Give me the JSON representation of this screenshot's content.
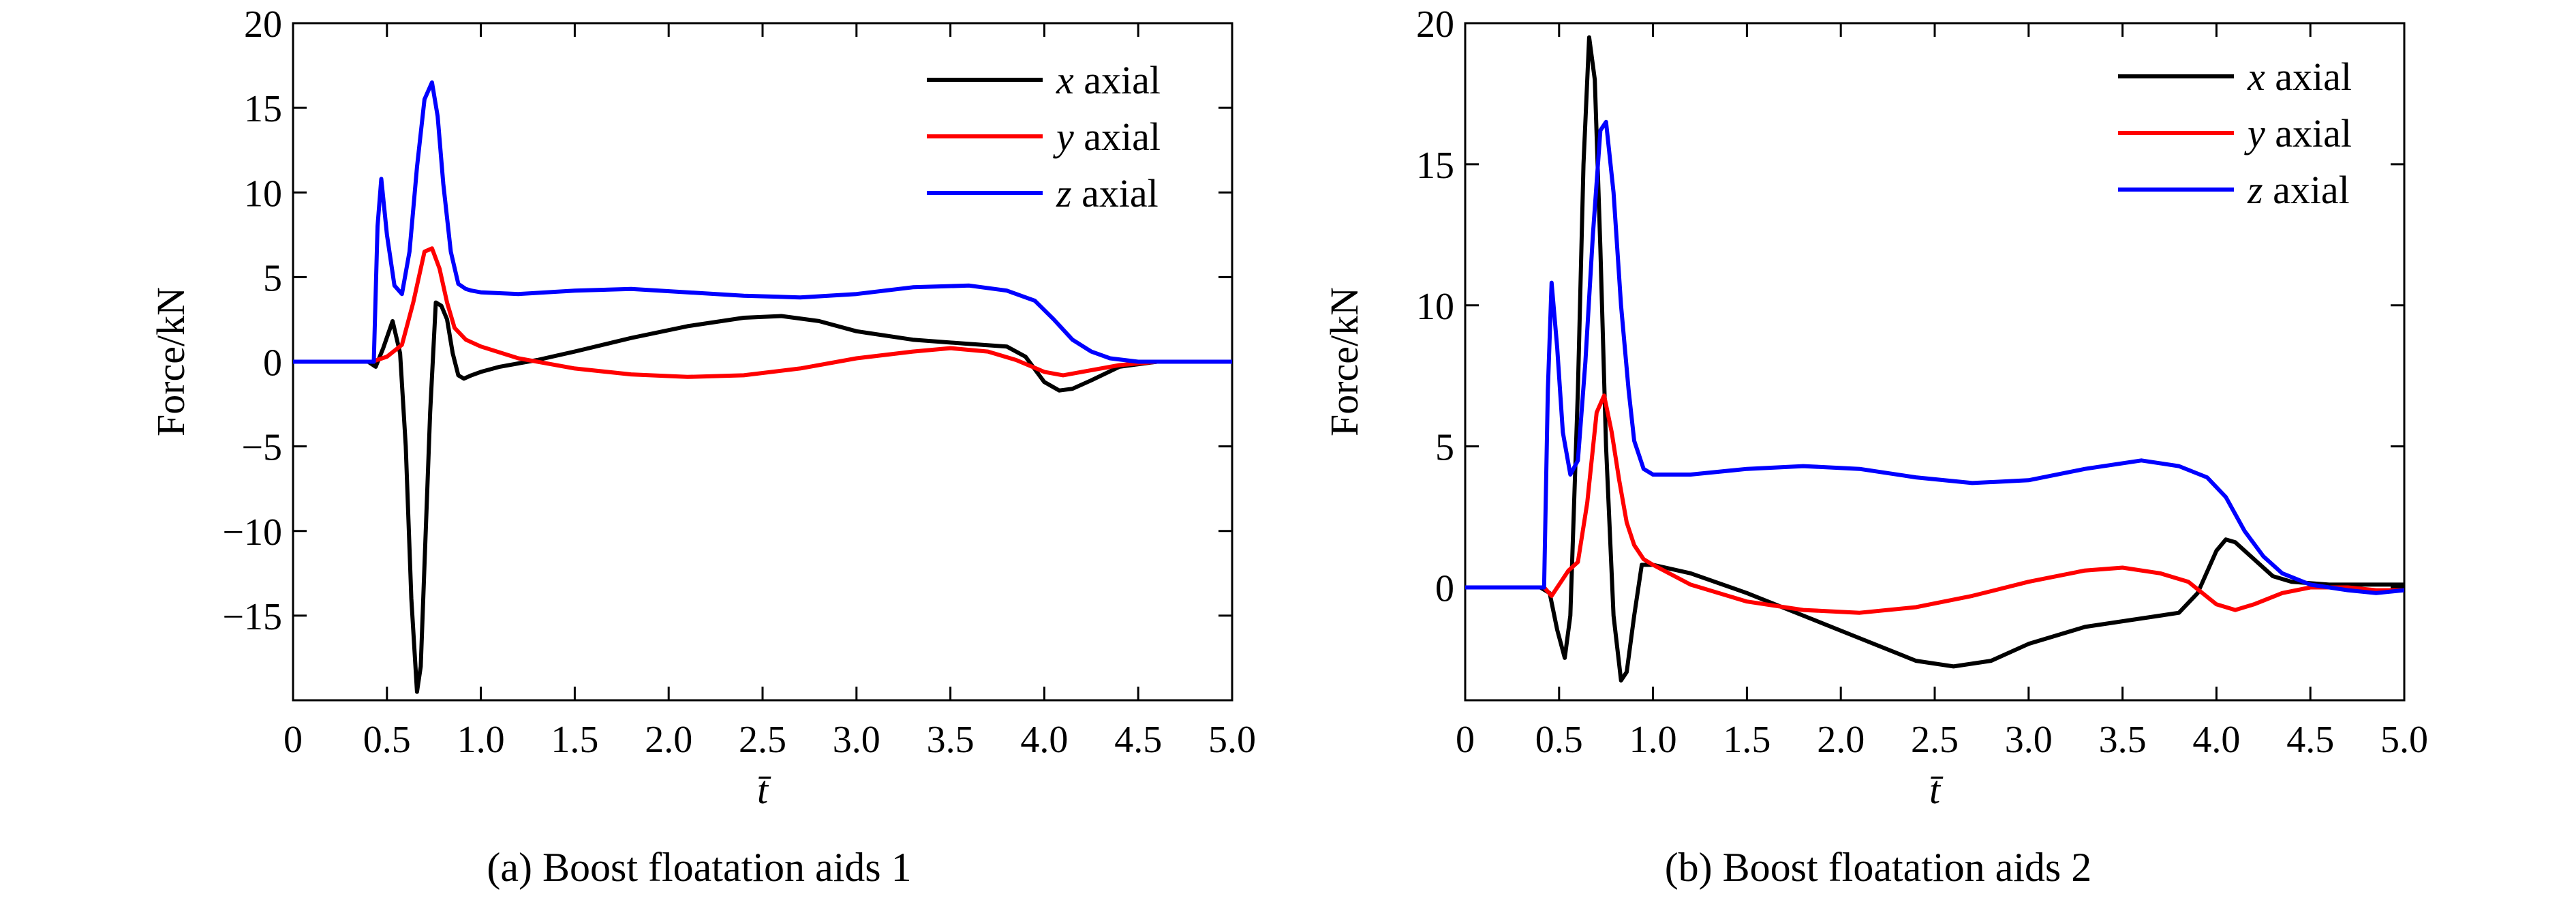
{
  "figure": {
    "captions": [
      "(a) Boost floatation aids 1",
      "(b) Boost floatation aids 2"
    ]
  },
  "chart_data": [
    {
      "type": "line",
      "caption": "(a) Boost floatation aids 1",
      "xlabel": "t̄",
      "ylabel": "Force/kN",
      "xlim": [
        0,
        5
      ],
      "ylim": [
        -20,
        20
      ],
      "xticks": [
        0,
        0.5,
        1.0,
        1.5,
        2.0,
        2.5,
        3.0,
        3.5,
        4.0,
        4.5,
        5.0
      ],
      "xtick_labels": [
        "0",
        "0.5",
        "1.0",
        "1.5",
        "2.0",
        "2.5",
        "3.0",
        "3.5",
        "4.0",
        "4.5",
        "5.0"
      ],
      "yticks": [
        -15,
        -10,
        -5,
        0,
        5,
        10,
        15,
        20
      ],
      "ytick_labels": [
        "−15",
        "−10",
        "−5",
        "0",
        "5",
        "10",
        "15",
        "20"
      ],
      "grid": false,
      "legend_position": "top-right",
      "series": [
        {
          "name_var": "x",
          "name": "axial",
          "color": "#000000",
          "x": [
            0,
            0.4,
            0.44,
            0.48,
            0.53,
            0.57,
            0.6,
            0.63,
            0.66,
            0.68,
            0.7,
            0.73,
            0.76,
            0.79,
            0.82,
            0.85,
            0.88,
            0.91,
            0.95,
            1.0,
            1.1,
            1.3,
            1.5,
            1.8,
            2.1,
            2.4,
            2.6,
            2.8,
            3.0,
            3.3,
            3.6,
            3.8,
            3.9,
            4.0,
            4.08,
            4.15,
            4.25,
            4.4,
            4.6,
            4.8,
            5.0
          ],
          "y": [
            0,
            0,
            -0.3,
            0.8,
            2.4,
            0.5,
            -5,
            -14,
            -19.5,
            -18,
            -12,
            -3,
            3.5,
            3.3,
            2.5,
            0.5,
            -0.8,
            -1,
            -0.8,
            -0.6,
            -0.3,
            0.1,
            0.6,
            1.4,
            2.1,
            2.6,
            2.7,
            2.4,
            1.8,
            1.3,
            1.05,
            0.9,
            0.3,
            -1.2,
            -1.7,
            -1.6,
            -1.1,
            -0.3,
            0,
            0,
            0
          ]
        },
        {
          "name_var": "y",
          "name": "axial",
          "color": "#ff0000",
          "x": [
            0,
            0.42,
            0.5,
            0.58,
            0.64,
            0.7,
            0.74,
            0.78,
            0.82,
            0.86,
            0.92,
            1.0,
            1.2,
            1.5,
            1.8,
            2.1,
            2.4,
            2.7,
            3.0,
            3.3,
            3.5,
            3.7,
            3.85,
            4.0,
            4.1,
            4.2,
            4.4,
            4.6,
            4.8,
            5.0
          ],
          "y": [
            0,
            0,
            0.3,
            1.0,
            3.5,
            6.5,
            6.7,
            5.5,
            3.5,
            2.0,
            1.3,
            0.9,
            0.2,
            -0.4,
            -0.75,
            -0.9,
            -0.8,
            -0.4,
            0.2,
            0.6,
            0.8,
            0.6,
            0.1,
            -0.6,
            -0.8,
            -0.6,
            -0.2,
            0,
            0,
            0
          ]
        },
        {
          "name_var": "z",
          "name": "axial",
          "color": "#0000ff",
          "x": [
            0,
            0.43,
            0.45,
            0.47,
            0.5,
            0.54,
            0.58,
            0.62,
            0.66,
            0.7,
            0.74,
            0.77,
            0.8,
            0.84,
            0.88,
            0.92,
            0.95,
            1.0,
            1.2,
            1.5,
            1.8,
            2.1,
            2.4,
            2.7,
            3.0,
            3.3,
            3.6,
            3.8,
            3.95,
            4.05,
            4.15,
            4.25,
            4.35,
            4.5,
            4.7,
            5.0
          ],
          "y": [
            0,
            0,
            8,
            10.8,
            7.5,
            4.5,
            4.0,
            6.5,
            11.5,
            15.5,
            16.5,
            14.5,
            10.5,
            6.5,
            4.6,
            4.3,
            4.2,
            4.1,
            4.0,
            4.2,
            4.3,
            4.1,
            3.9,
            3.8,
            4.0,
            4.4,
            4.5,
            4.2,
            3.6,
            2.5,
            1.3,
            0.6,
            0.2,
            0,
            0,
            0
          ]
        }
      ]
    },
    {
      "type": "line",
      "caption": "(b) Boost floatation aids 2",
      "xlabel": "t̄",
      "ylabel": "Force/kN",
      "xlim": [
        0,
        5
      ],
      "ylim": [
        -4,
        20
      ],
      "xticks": [
        0,
        0.5,
        1.0,
        1.5,
        2.0,
        2.5,
        3.0,
        3.5,
        4.0,
        4.5,
        5.0
      ],
      "xtick_labels": [
        "0",
        "0.5",
        "1.0",
        "1.5",
        "2.0",
        "2.5",
        "3.0",
        "3.5",
        "4.0",
        "4.5",
        "5.0"
      ],
      "yticks": [
        0,
        5,
        10,
        15,
        20
      ],
      "ytick_labels": [
        "0",
        "5",
        "10",
        "15",
        "20"
      ],
      "grid": false,
      "legend_position": "top-right",
      "series": [
        {
          "name_var": "x",
          "name": "axial",
          "color": "#000000",
          "x": [
            0,
            0.4,
            0.45,
            0.49,
            0.53,
            0.56,
            0.6,
            0.63,
            0.66,
            0.69,
            0.72,
            0.75,
            0.79,
            0.83,
            0.86,
            0.9,
            0.94,
            1.0,
            1.2,
            1.5,
            1.8,
            2.1,
            2.4,
            2.6,
            2.8,
            3.0,
            3.3,
            3.6,
            3.8,
            3.9,
            4.0,
            4.05,
            4.1,
            4.2,
            4.3,
            4.4,
            4.6,
            4.8,
            5.0
          ],
          "y": [
            0,
            0,
            -0.2,
            -1.5,
            -2.5,
            -1,
            7,
            15,
            19.5,
            18,
            12,
            5,
            -1,
            -3.3,
            -3.0,
            -1,
            0.8,
            0.8,
            0.5,
            -0.2,
            -1.0,
            -1.8,
            -2.6,
            -2.8,
            -2.6,
            -2.0,
            -1.4,
            -1.1,
            -0.9,
            -0.2,
            1.3,
            1.7,
            1.6,
            1.0,
            0.4,
            0.2,
            0.1,
            0.1,
            0.1
          ]
        },
        {
          "name_var": "y",
          "name": "axial",
          "color": "#ff0000",
          "x": [
            0,
            0.42,
            0.46,
            0.5,
            0.55,
            0.6,
            0.65,
            0.7,
            0.74,
            0.78,
            0.82,
            0.86,
            0.9,
            0.95,
            1.0,
            1.2,
            1.5,
            1.8,
            2.1,
            2.4,
            2.7,
            3.0,
            3.3,
            3.5,
            3.7,
            3.85,
            4.0,
            4.1,
            4.2,
            4.35,
            4.5,
            4.7,
            4.85,
            5.0
          ],
          "y": [
            0,
            0,
            -0.3,
            0.1,
            0.6,
            0.9,
            3,
            6.2,
            6.8,
            5.5,
            3.8,
            2.3,
            1.5,
            1.0,
            0.8,
            0.1,
            -0.5,
            -0.8,
            -0.9,
            -0.7,
            -0.3,
            0.2,
            0.6,
            0.7,
            0.5,
            0.2,
            -0.6,
            -0.8,
            -0.6,
            -0.2,
            0,
            0,
            -0.1,
            -0.1
          ]
        },
        {
          "name_var": "z",
          "name": "axial",
          "color": "#0000ff",
          "x": [
            0,
            0.42,
            0.44,
            0.46,
            0.49,
            0.52,
            0.56,
            0.6,
            0.64,
            0.68,
            0.72,
            0.75,
            0.79,
            0.83,
            0.87,
            0.9,
            0.93,
            0.95,
            1.0,
            1.2,
            1.5,
            1.8,
            2.1,
            2.4,
            2.7,
            3.0,
            3.3,
            3.6,
            3.8,
            3.95,
            4.05,
            4.15,
            4.25,
            4.35,
            4.5,
            4.7,
            4.85,
            5.0
          ],
          "y": [
            0,
            0,
            7,
            10.8,
            8.5,
            5.5,
            4.0,
            4.5,
            8,
            12.5,
            16.2,
            16.5,
            14,
            10,
            7,
            5.2,
            4.6,
            4.2,
            4.0,
            4.0,
            4.2,
            4.3,
            4.2,
            3.9,
            3.7,
            3.8,
            4.2,
            4.5,
            4.3,
            3.9,
            3.2,
            2.0,
            1.1,
            0.5,
            0.1,
            -0.1,
            -0.2,
            -0.1
          ]
        }
      ]
    }
  ]
}
